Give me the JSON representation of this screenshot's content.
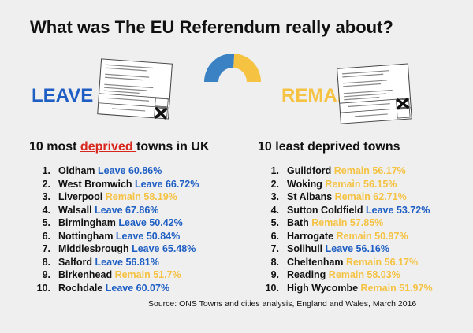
{
  "title": "What was The EU Referendum really about?",
  "leave_label": "LEAVE",
  "remain_label": "REMAIN",
  "colors": {
    "leave": "#1f5fc4",
    "remain": "#f5c242",
    "deprived_highlight": "#d9261c"
  },
  "left_heading": {
    "prefix": "10 most ",
    "highlight": "deprived ",
    "suffix": "towns in UK"
  },
  "right_heading": "10 least deprived towns",
  "most_deprived": [
    {
      "n": "1.",
      "town": "Oldham",
      "result": "Leave 60.86%",
      "side": "leave"
    },
    {
      "n": "2.",
      "town": "West Bromwich",
      "result": "Leave 66.72%",
      "side": "leave"
    },
    {
      "n": "3.",
      "town": "Liverpool",
      "result": "Remain 58.19%",
      "side": "remain"
    },
    {
      "n": "4.",
      "town": "Walsall",
      "result": "Leave 67.86%",
      "side": "leave"
    },
    {
      "n": "5.",
      "town": "Birmingham",
      "result": "Leave 50.42%",
      "side": "leave"
    },
    {
      "n": "6.",
      "town": "Nottingham",
      "result": "Leave 50.84%",
      "side": "leave"
    },
    {
      "n": "7.",
      "town": "Middlesbrough",
      "result": "Leave 65.48%",
      "side": "leave"
    },
    {
      "n": "8.",
      "town": "Salford",
      "result": "Leave 56.81%",
      "side": "leave"
    },
    {
      "n": "9.",
      "town": "Birkenhead",
      "result": "Remain 51.7%",
      "side": "remain"
    },
    {
      "n": "10.",
      "town": "Rochdale",
      "result": "Leave 60.07%",
      "side": "leave"
    }
  ],
  "least_deprived": [
    {
      "n": "1.",
      "town": "Guildford",
      "result": "Remain 56.17%",
      "side": "remain"
    },
    {
      "n": "2.",
      "town": "Woking",
      "result": "Remain 56.15%",
      "side": "remain"
    },
    {
      "n": "3.",
      "town": "St Albans",
      "result": "Remain 62.71%",
      "side": "remain"
    },
    {
      "n": "4.",
      "town": "Sutton Coldfield",
      "result": "Leave 53.72%",
      "side": "leave"
    },
    {
      "n": "5.",
      "town": "Bath",
      "result": "Remain 57.85%",
      "side": "remain"
    },
    {
      "n": "6.",
      "town": "Harrogate",
      "result": "Remain 50.97%",
      "side": "remain"
    },
    {
      "n": "7.",
      "town": "Solihull",
      "result": "Leave 56.16%",
      "side": "leave"
    },
    {
      "n": "8.",
      "town": "Cheltenham",
      "result": "Remain 56.17%",
      "side": "remain"
    },
    {
      "n": "9.",
      "town": "Reading",
      "result": "Remain 58.03%",
      "side": "remain"
    },
    {
      "n": "10.",
      "town": "High Wycombe",
      "result": "Remain 51.97%",
      "side": "remain"
    }
  ],
  "source": "Source: ONS Towns and cities analysis, England and Wales, March 2016",
  "gauge": {
    "leave_fraction": 0.52,
    "remain_fraction": 0.48
  },
  "ballot_icons": [
    "ballot-paper-icon",
    "cross-mark-icon"
  ]
}
